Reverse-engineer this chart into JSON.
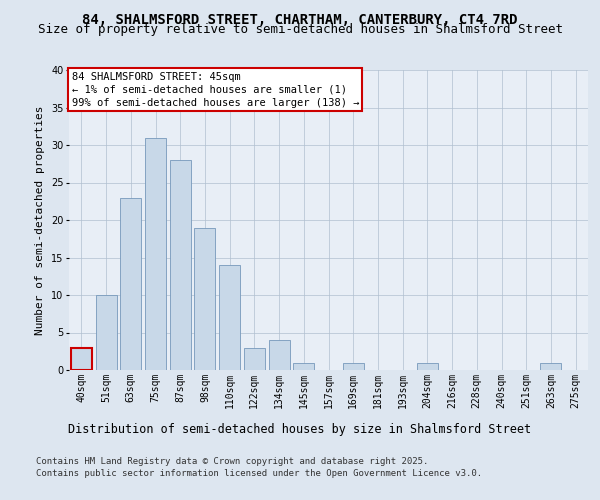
{
  "title1": "84, SHALMSFORD STREET, CHARTHAM, CANTERBURY, CT4 7RD",
  "title2": "Size of property relative to semi-detached houses in Shalmsford Street",
  "xlabel": "Distribution of semi-detached houses by size in Shalmsford Street",
  "ylabel": "Number of semi-detached properties",
  "categories": [
    "40sqm",
    "51sqm",
    "63sqm",
    "75sqm",
    "87sqm",
    "98sqm",
    "110sqm",
    "122sqm",
    "134sqm",
    "145sqm",
    "157sqm",
    "169sqm",
    "181sqm",
    "193sqm",
    "204sqm",
    "216sqm",
    "228sqm",
    "240sqm",
    "251sqm",
    "263sqm",
    "275sqm"
  ],
  "values": [
    3,
    10,
    23,
    31,
    28,
    19,
    14,
    3,
    4,
    1,
    0,
    1,
    0,
    0,
    1,
    0,
    0,
    0,
    0,
    1,
    0
  ],
  "bar_color": "#c8d8e8",
  "bar_edge_color": "#7799bb",
  "highlight_bar_index": 0,
  "highlight_edge_color": "#cc0000",
  "annotation_title": "84 SHALMSFORD STREET: 45sqm",
  "annotation_line1": "← 1% of semi-detached houses are smaller (1)",
  "annotation_line2": "99% of semi-detached houses are larger (138) →",
  "annotation_box_color": "#ffffff",
  "annotation_box_edge": "#cc0000",
  "ylim": [
    0,
    40
  ],
  "yticks": [
    0,
    5,
    10,
    15,
    20,
    25,
    30,
    35,
    40
  ],
  "background_color": "#dde6f0",
  "plot_bg_color": "#e8eef6",
  "footer": "Contains HM Land Registry data © Crown copyright and database right 2025.\nContains public sector information licensed under the Open Government Licence v3.0.",
  "title_fontsize": 10,
  "subtitle_fontsize": 9,
  "xlabel_fontsize": 8.5,
  "ylabel_fontsize": 8,
  "tick_fontsize": 7,
  "annotation_fontsize": 7.5,
  "footer_fontsize": 6.5
}
